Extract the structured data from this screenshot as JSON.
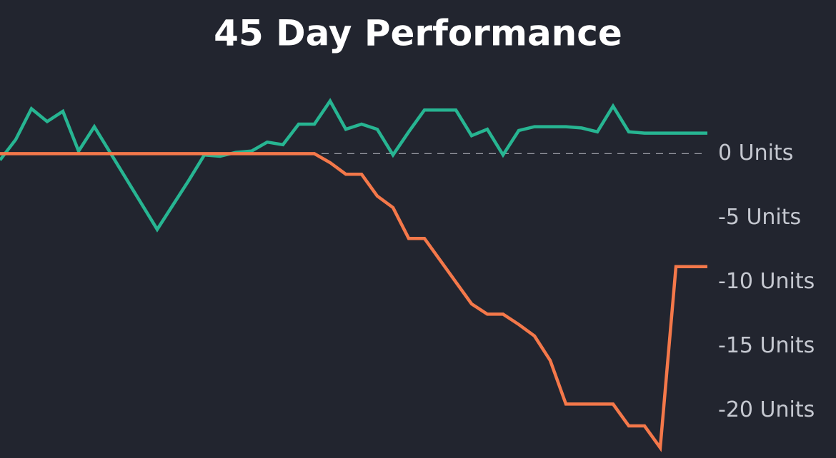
{
  "chart_data": {
    "type": "line",
    "title": "45 Day Performance",
    "series": [
      {
        "color": "#27b592",
        "values": [
          -0.5,
          1.1,
          3.5,
          2.5,
          3.3,
          0.2,
          2.1,
          0.1,
          -1.9,
          -3.9,
          -5.9,
          -4,
          -2.1,
          -0.1,
          -0.2,
          0.1,
          0.2,
          0.9,
          0.7,
          2.3,
          2.3,
          4.1,
          1.9,
          2.3,
          1.9,
          -0.1,
          1.7,
          3.4,
          3.4,
          3.4,
          1.4,
          1.9,
          -0.1,
          1.8,
          2.1,
          2.1,
          2.1,
          2,
          1.7,
          3.7,
          1.7,
          1.6,
          1.6,
          1.6,
          1.6,
          1.6
        ]
      },
      {
        "color": "#f4784a",
        "values": [
          0,
          0,
          0,
          0,
          0,
          0,
          0,
          0,
          0,
          0,
          0,
          0,
          0,
          0,
          0,
          0,
          0,
          0,
          0,
          0,
          0,
          -0.7,
          -1.6,
          -1.6,
          -3.3,
          -4.2,
          -6.6,
          -6.6,
          -8.3,
          -10,
          -11.7,
          -12.5,
          -12.5,
          -13.3,
          -14.2,
          -16.1,
          -19.5,
          -19.5,
          -19.5,
          -19.5,
          -21.2,
          -21.2,
          -22.9,
          -8.8,
          -8.8,
          -8.8
        ]
      }
    ],
    "ylim": [
      -23.7,
      5.3
    ],
    "yticks": [
      {
        "value": 0,
        "label": "0 Units"
      },
      {
        "value": -5,
        "label": "-5 Units"
      },
      {
        "value": -10,
        "label": "-10 Units"
      },
      {
        "value": -15,
        "label": "-15 Units"
      },
      {
        "value": -20,
        "label": "-20 Units"
      }
    ],
    "zero_line": true
  }
}
